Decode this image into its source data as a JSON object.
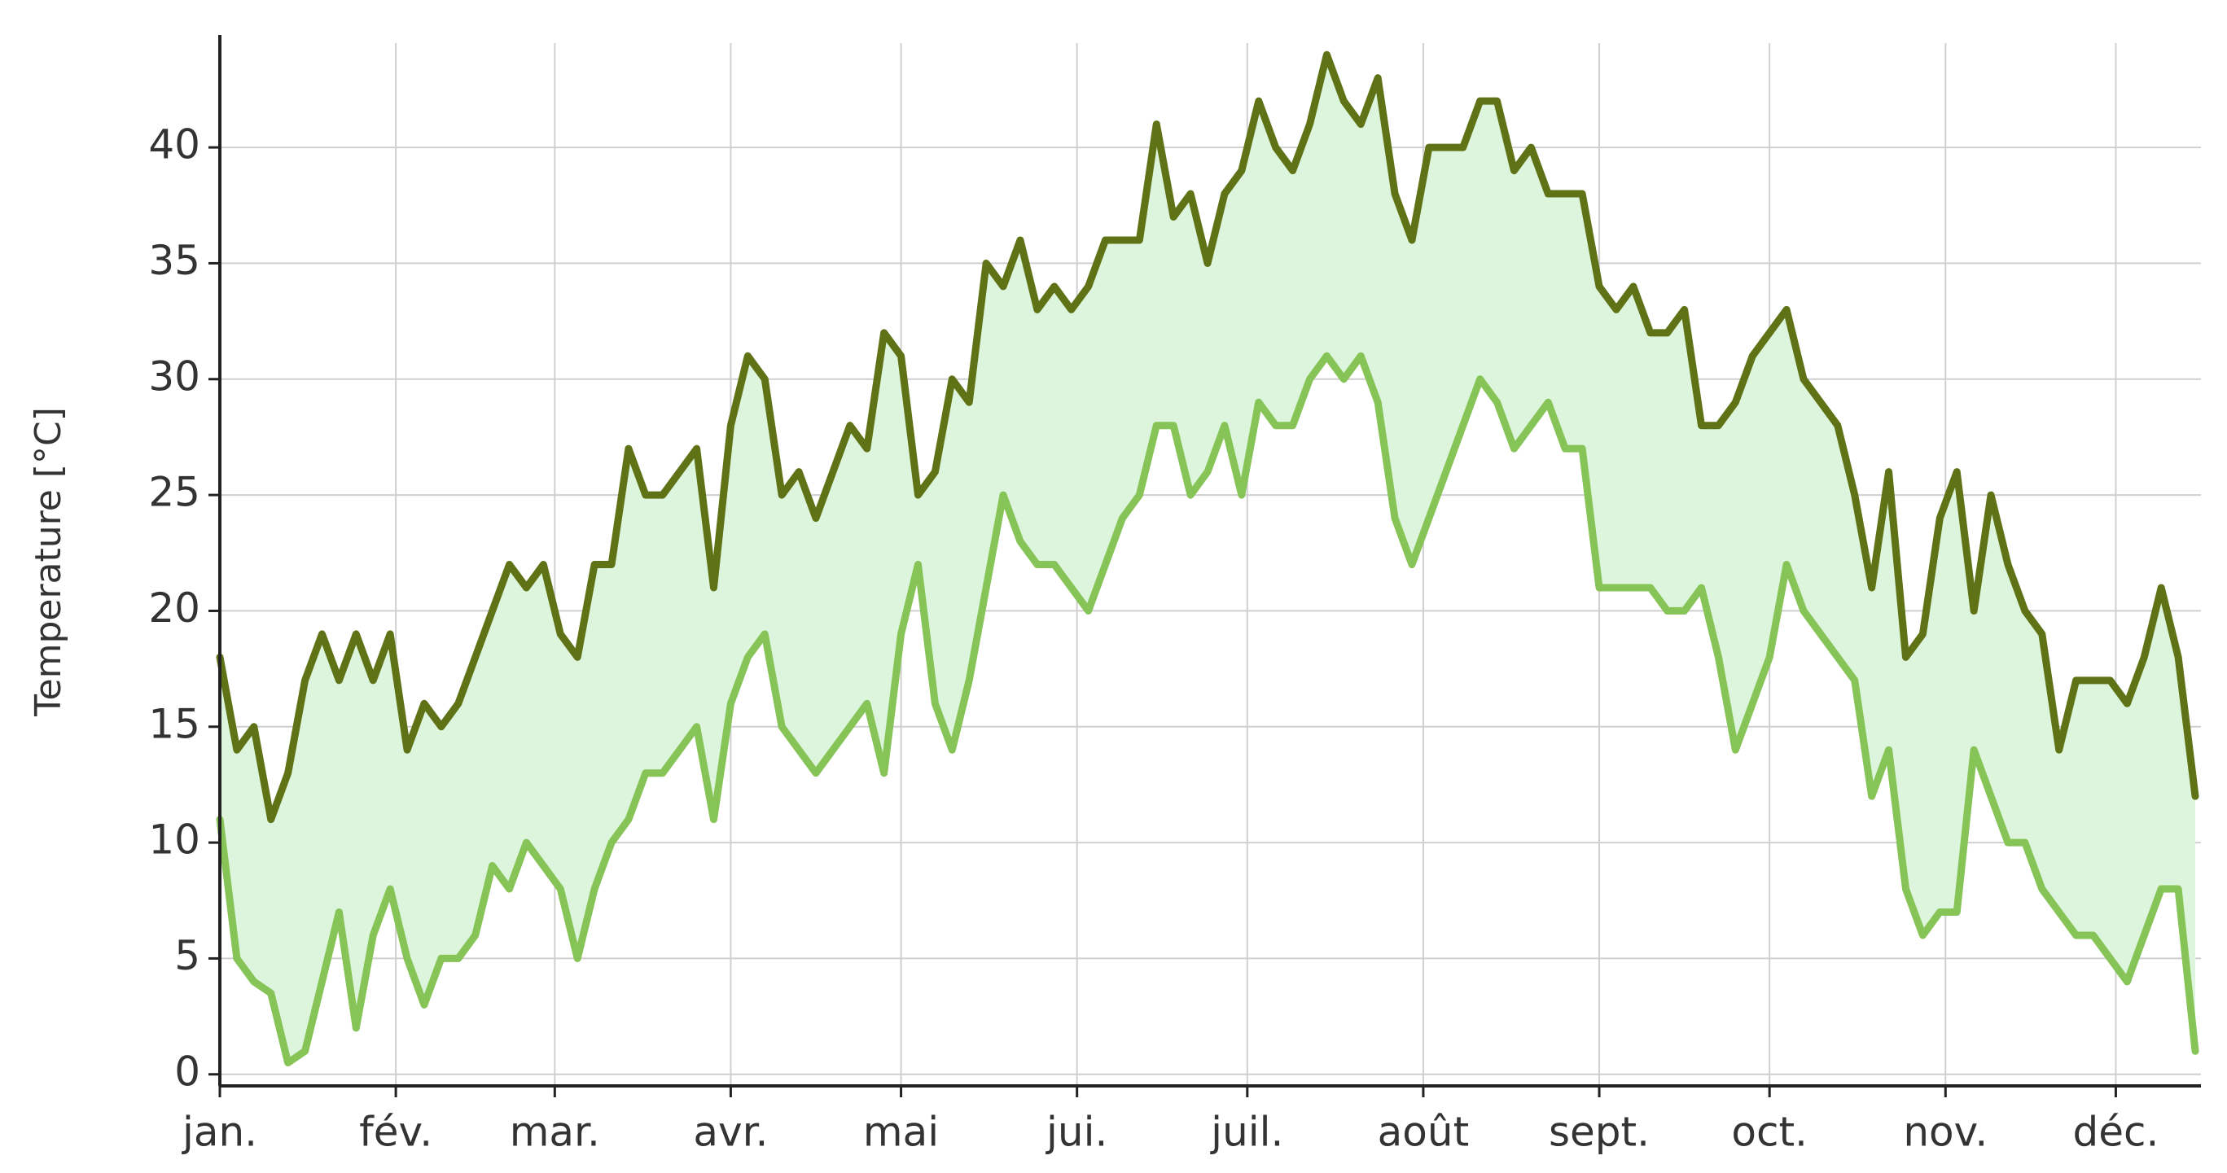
{
  "chart_data": {
    "type": "line",
    "y_label": "Temperature [°C]",
    "x": [
      0,
      3,
      6,
      9,
      12,
      15,
      18,
      21,
      24,
      27,
      30,
      33,
      36,
      39,
      42,
      45,
      48,
      51,
      54,
      57,
      60,
      63,
      66,
      69,
      72,
      75,
      78,
      81,
      84,
      87,
      90,
      93,
      96,
      99,
      102,
      105,
      108,
      111,
      114,
      117,
      120,
      123,
      126,
      129,
      132,
      135,
      138,
      141,
      144,
      147,
      150,
      153,
      156,
      159,
      162,
      165,
      168,
      171,
      174,
      177,
      180,
      183,
      186,
      189,
      192,
      195,
      198,
      201,
      204,
      207,
      210,
      213,
      216,
      219,
      222,
      225,
      228,
      231,
      234,
      237,
      240,
      243,
      246,
      249,
      252,
      255,
      258,
      261,
      264,
      267,
      270,
      273,
      276,
      279,
      282,
      285,
      288,
      291,
      294,
      297,
      300,
      303,
      306,
      309,
      312,
      315,
      318,
      321,
      324,
      327,
      330,
      333,
      336,
      339,
      342,
      345,
      348
    ],
    "series": [
      {
        "color": "#5f7316",
        "values": [
          18,
          14,
          15,
          11,
          13,
          17,
          19,
          17,
          19,
          17,
          19,
          14,
          16,
          15,
          16,
          18,
          20,
          22,
          21,
          22,
          19,
          18,
          22,
          22,
          27,
          25,
          25,
          26,
          27,
          21,
          28,
          31,
          30,
          25,
          26,
          24,
          26,
          28,
          27,
          32,
          31,
          25,
          26,
          30,
          29,
          35,
          34,
          36,
          33,
          34,
          33,
          34,
          36,
          36,
          36,
          41,
          37,
          38,
          35,
          38,
          39,
          42,
          40,
          39,
          41,
          44,
          42,
          41,
          43,
          38,
          36,
          40,
          40,
          40,
          42,
          42,
          39,
          40,
          38,
          38,
          38,
          34,
          33,
          34,
          32,
          32,
          33,
          28,
          28,
          29,
          31,
          32,
          33,
          30,
          29,
          28,
          25,
          21,
          26,
          18,
          19,
          24,
          26,
          20,
          25,
          22,
          20,
          19,
          14,
          17,
          17,
          17,
          16,
          18,
          21,
          18,
          12
        ]
      },
      {
        "color": "#86c457",
        "values": [
          11,
          5,
          4,
          3.5,
          0.5,
          1,
          4,
          7,
          2,
          6,
          8,
          5,
          3,
          5,
          5,
          6,
          9,
          8,
          10,
          9,
          8,
          5,
          8,
          10,
          11,
          13,
          13,
          14,
          15,
          11,
          16,
          18,
          19,
          15,
          14,
          13,
          14,
          15,
          16,
          13,
          19,
          22,
          16,
          14,
          17,
          21,
          25,
          23,
          22,
          22,
          21,
          20,
          22,
          24,
          25,
          28,
          28,
          25,
          26,
          28,
          25,
          29,
          28,
          28,
          30,
          31,
          30,
          31,
          29,
          24,
          22,
          24,
          26,
          28,
          30,
          29,
          27,
          28,
          29,
          27,
          27,
          21,
          21,
          21,
          21,
          20,
          20,
          21,
          18,
          14,
          16,
          18,
          22,
          20,
          19,
          18,
          17,
          12,
          14,
          8,
          6,
          7,
          7,
          14,
          12,
          10,
          10,
          8,
          7,
          6,
          6,
          5,
          4,
          6,
          8,
          8,
          1
        ]
      }
    ],
    "fill_between": true,
    "fill_color": "#dcf5dc",
    "xlim": [
      0,
      349
    ],
    "xticks": [
      {
        "value": 0,
        "label": "jan."
      },
      {
        "value": 31,
        "label": "fév."
      },
      {
        "value": 59,
        "label": "mar."
      },
      {
        "value": 90,
        "label": "avr."
      },
      {
        "value": 120,
        "label": "mai"
      },
      {
        "value": 151,
        "label": "jui."
      },
      {
        "value": 181,
        "label": "juil."
      },
      {
        "value": 212,
        "label": "août"
      },
      {
        "value": 243,
        "label": "sept."
      },
      {
        "value": 273,
        "label": "oct."
      },
      {
        "value": 304,
        "label": "nov."
      },
      {
        "value": 334,
        "label": "déc."
      }
    ],
    "ylim": [
      -0.5,
      44.5
    ],
    "yticks": [
      0,
      5,
      10,
      15,
      20,
      25,
      30,
      35,
      40
    ],
    "grid": true
  }
}
